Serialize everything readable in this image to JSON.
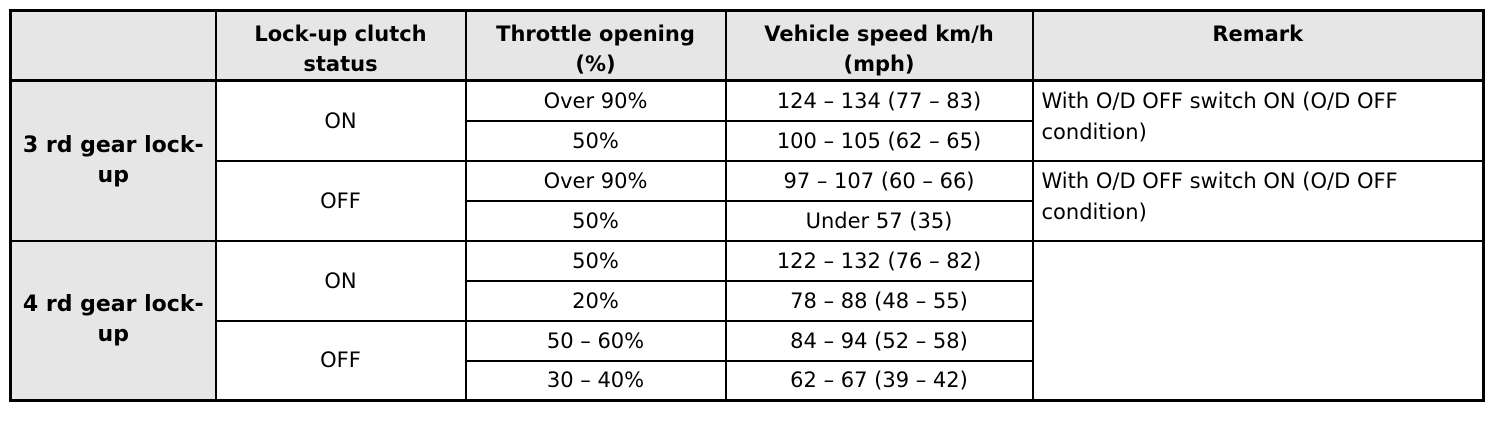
{
  "table": {
    "headers": {
      "corner": "",
      "lockup": "Lock-up clutch status",
      "throttle": "Throttle opening (%)",
      "speed": "Vehicle speed km/h (mph)",
      "remark": "Remark"
    },
    "groups": [
      {
        "label": "3 rd gear lock-up",
        "statuses": [
          {
            "status": "ON",
            "remark": "With O/D OFF switch ON (O/D OFF condition)",
            "rows": [
              {
                "throttle": "Over 90%",
                "speed": "124 – 134 (77 – 83)"
              },
              {
                "throttle": "50%",
                "speed": "100 – 105 (62 – 65)"
              }
            ]
          },
          {
            "status": "OFF",
            "remark": "With O/D OFF switch ON (O/D OFF condition)",
            "rows": [
              {
                "throttle": "Over 90%",
                "speed": "97 – 107 (60 – 66)"
              },
              {
                "throttle": "50%",
                "speed": "Under 57 (35)"
              }
            ]
          }
        ]
      },
      {
        "label": "4 rd gear lock-up",
        "remark": "",
        "statuses": [
          {
            "status": "ON",
            "rows": [
              {
                "throttle": "50%",
                "speed": "122 – 132 (76 – 82)"
              },
              {
                "throttle": "20%",
                "speed": "78 – 88 (48 – 55)"
              }
            ]
          },
          {
            "status": "OFF",
            "rows": [
              {
                "throttle": "50 – 60%",
                "speed": "84 – 94 (52 – 58)"
              },
              {
                "throttle": "30 – 40%",
                "speed": "62 – 67 (39 – 42)"
              }
            ]
          }
        ]
      }
    ]
  }
}
